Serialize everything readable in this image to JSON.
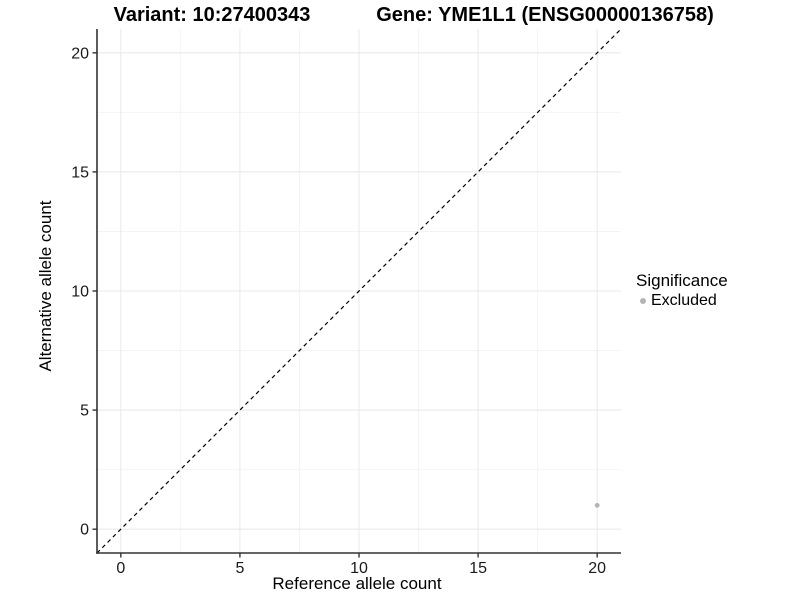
{
  "chart_data": {
    "type": "scatter",
    "titles": {
      "left": "Variant: 10:27400343",
      "right": "Gene: YME1L1 (ENSG00000136758)"
    },
    "xlabel": "Reference allele count",
    "ylabel": "Alternative allele count",
    "x_axis": {
      "range": [
        -1,
        21
      ],
      "ticks": [
        0,
        5,
        10,
        15,
        20
      ],
      "minor_ticks": [
        2.5,
        7.5,
        12.5,
        17.5
      ]
    },
    "y_axis": {
      "range": [
        -1,
        21
      ],
      "ticks": [
        0,
        5,
        10,
        15,
        20
      ],
      "minor_ticks": [
        2.5,
        7.5,
        12.5,
        17.5
      ]
    },
    "reference_line": {
      "type": "identity",
      "equation": "y = x",
      "style": "dashed",
      "color": "#000000"
    },
    "points": [
      {
        "x": 20,
        "y": 1,
        "series": "Excluded",
        "color": "#b4b4b4"
      }
    ],
    "legend": {
      "title": "Significance",
      "position": "right",
      "items": [
        {
          "label": "Excluded",
          "color": "#b4b4b4",
          "marker": "circle"
        }
      ]
    },
    "colors": {
      "background": "#ffffff",
      "grid_major": "#e8e8e8",
      "grid_minor": "#f4f4f4",
      "axis": "#333333",
      "text": "#1a1a1a",
      "point": "#b4b4b4"
    },
    "grid": true
  }
}
